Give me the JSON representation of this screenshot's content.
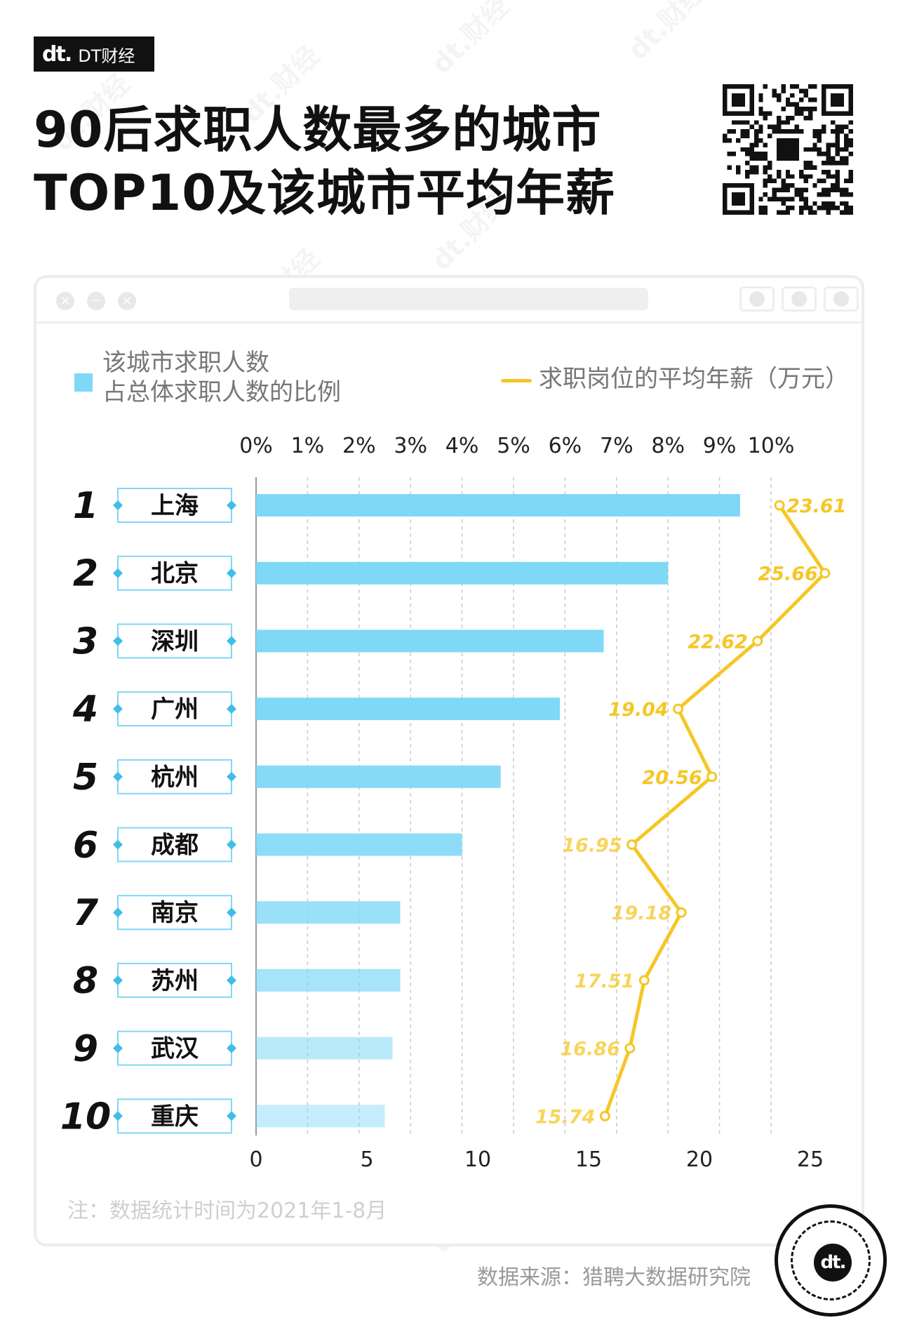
{
  "logo": {
    "mark": "dt.",
    "text": "DT财经"
  },
  "title": {
    "line1": "90后求职人数最多的城市",
    "line2": "TOP10及该城市平均年薪"
  },
  "legend": {
    "bar_label_line1": "该城市求职人数",
    "bar_label_line2": "占总体求职人数的比例",
    "line_label": "求职岗位的平均年薪（万元）"
  },
  "note": "注：数据统计时间为2021年1-8月",
  "source": "数据来源：猎聘大数据研究院",
  "watermark": "dt.财经",
  "badge": {
    "mark": "dt."
  },
  "colors": {
    "bar": "#7fd8f6",
    "line": "#f5c726",
    "text": "#111111",
    "muted": "#777777"
  },
  "chart_data": {
    "type": "bar",
    "orientation": "horizontal",
    "categories": [
      "上海",
      "北京",
      "深圳",
      "广州",
      "杭州",
      "成都",
      "南京",
      "苏州",
      "武汉",
      "重庆"
    ],
    "ranks": [
      "1",
      "2",
      "3",
      "4",
      "5",
      "6",
      "7",
      "8",
      "9",
      "10"
    ],
    "series": [
      {
        "name": "该城市求职人数占总体求职人数的比例",
        "type": "bar",
        "axis": "top",
        "values": [
          9.4,
          8.0,
          6.75,
          5.9,
          4.75,
          4.0,
          2.8,
          2.8,
          2.65,
          2.5
        ]
      },
      {
        "name": "求职岗位的平均年薪（万元）",
        "type": "line",
        "axis": "bottom",
        "values": [
          23.61,
          25.66,
          22.62,
          19.04,
          20.56,
          16.95,
          19.18,
          17.51,
          16.86,
          15.74
        ],
        "labels": [
          "23.61",
          "25.66",
          "22.62",
          "19.04",
          "20.56",
          "16.95",
          "19.18",
          "17.51",
          "16.86",
          "15.74"
        ]
      }
    ],
    "top_axis": {
      "range": [
        0,
        10
      ],
      "ticks": [
        "0%",
        "1%",
        "2%",
        "3%",
        "4%",
        "5%",
        "6%",
        "7%",
        "8%",
        "9%",
        "10%"
      ]
    },
    "bottom_axis": {
      "range": [
        0,
        27
      ],
      "ticks": [
        "0",
        "5",
        "10",
        "15",
        "20",
        "25"
      ]
    },
    "grid": true
  }
}
